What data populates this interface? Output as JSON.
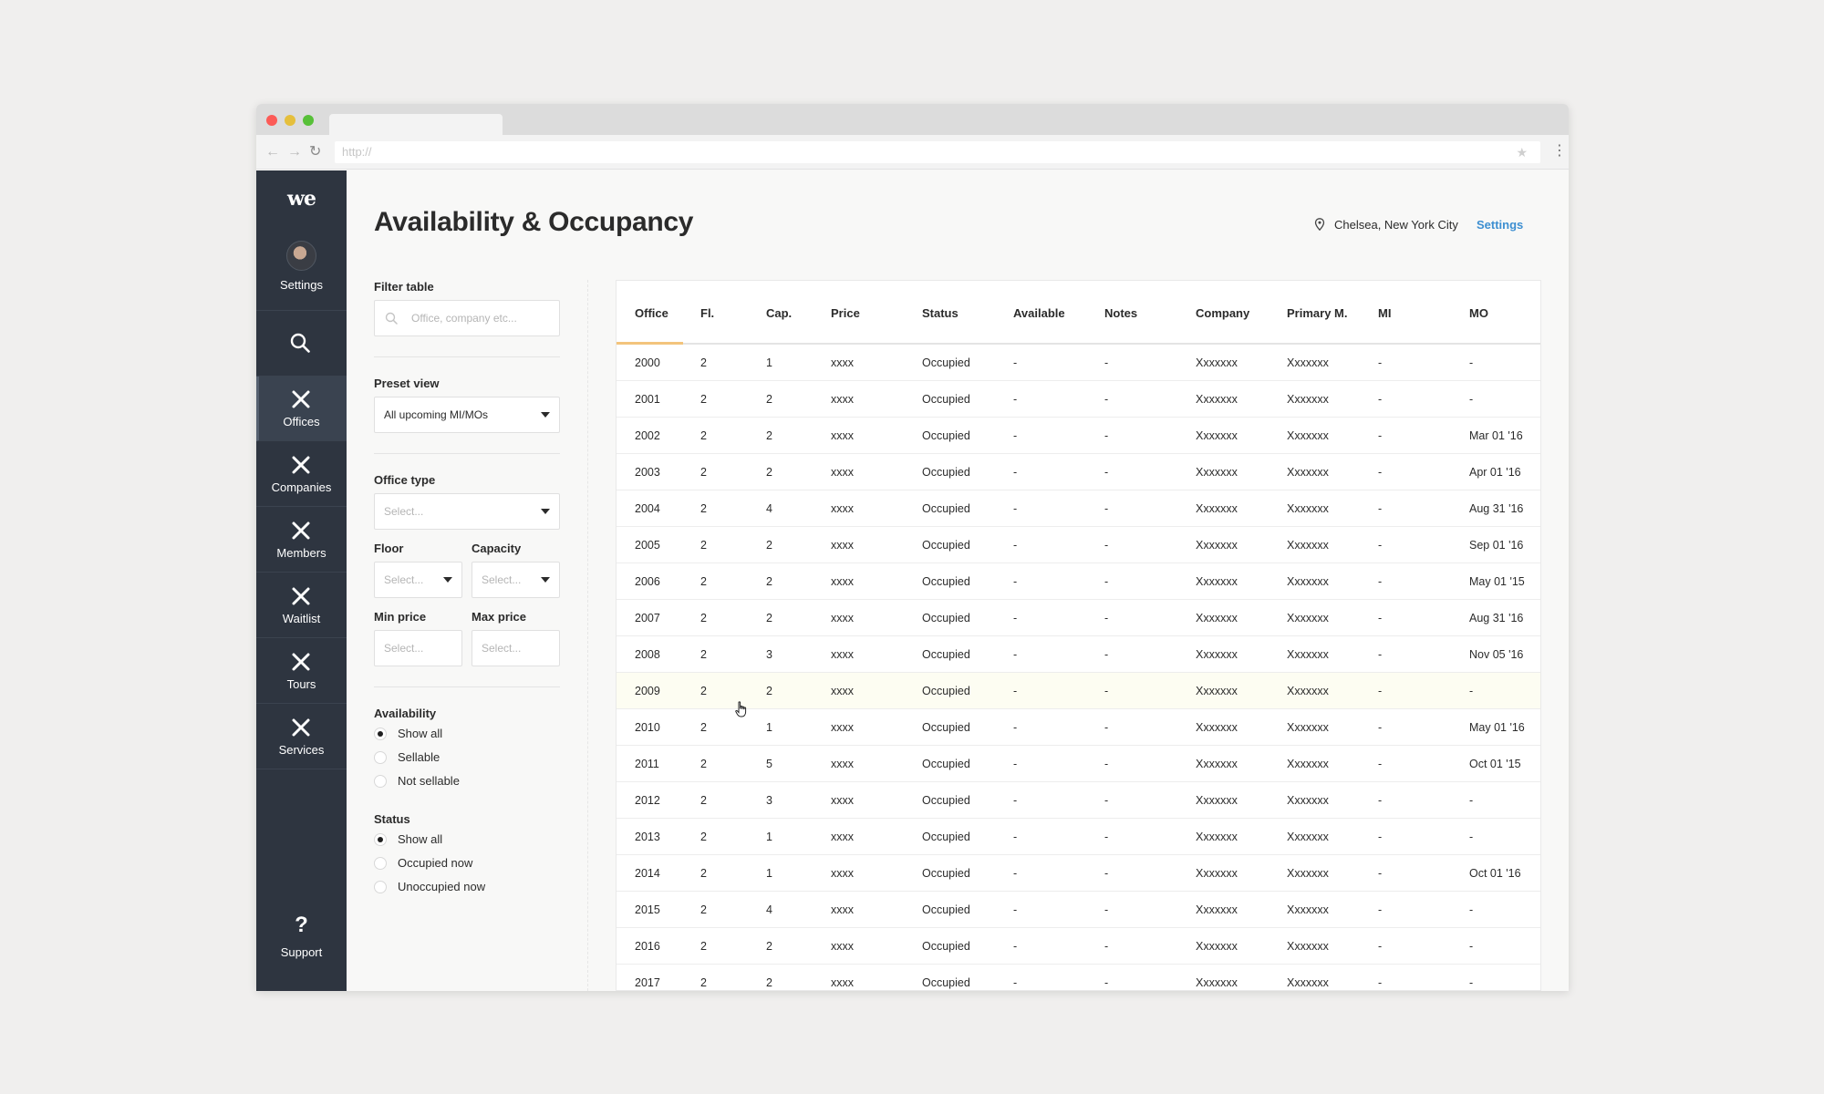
{
  "browser": {
    "url_placeholder": "http://",
    "back_glyph": "←",
    "forward_glyph": "→",
    "reload_glyph": "↻",
    "star_glyph": "★",
    "menu_glyph": "⋮"
  },
  "sidebar": {
    "logo": "we",
    "profile_label": "Settings",
    "items": [
      {
        "label": "Offices",
        "active": true
      },
      {
        "label": "Companies",
        "active": false
      },
      {
        "label": "Members",
        "active": false
      },
      {
        "label": "Waitlist",
        "active": false
      },
      {
        "label": "Tours",
        "active": false
      },
      {
        "label": "Services",
        "active": false
      }
    ],
    "support_glyph": "?",
    "support_label": "Support"
  },
  "header": {
    "title": "Availability & Occupancy",
    "location": "Chelsea, New York City",
    "settings_label": "Settings"
  },
  "filters": {
    "filter_table_label": "Filter table",
    "filter_table_placeholder": "Office, company etc...",
    "preset_view_label": "Preset view",
    "preset_view_value": "All upcoming MI/MOs",
    "office_type_label": "Office type",
    "office_type_placeholder": "Select...",
    "floor_label": "Floor",
    "floor_placeholder": "Select...",
    "capacity_label": "Capacity",
    "capacity_placeholder": "Select...",
    "min_price_label": "Min price",
    "min_price_placeholder": "Select...",
    "max_price_label": "Max price",
    "max_price_placeholder": "Select...",
    "availability_label": "Availability",
    "availability_options": [
      {
        "label": "Show all",
        "checked": true
      },
      {
        "label": "Sellable",
        "checked": false
      },
      {
        "label": "Not sellable",
        "checked": false
      }
    ],
    "status_label": "Status",
    "status_options": [
      {
        "label": "Show all",
        "checked": true
      },
      {
        "label": "Occupied now",
        "checked": false
      },
      {
        "label": "Unoccupied now",
        "checked": false
      }
    ]
  },
  "table": {
    "columns": [
      "Office",
      "Fl.",
      "Cap.",
      "Price",
      "Status",
      "Available",
      "Notes",
      "Company",
      "Primary M.",
      "MI",
      "MO"
    ],
    "rows": [
      [
        "2000",
        "2",
        "1",
        "xxxx",
        "Occupied",
        "-",
        "-",
        "Xxxxxxx",
        "Xxxxxxx",
        "-",
        "-"
      ],
      [
        "2001",
        "2",
        "2",
        "xxxx",
        "Occupied",
        "-",
        "-",
        "Xxxxxxx",
        "Xxxxxxx",
        "-",
        "-"
      ],
      [
        "2002",
        "2",
        "2",
        "xxxx",
        "Occupied",
        "-",
        "-",
        "Xxxxxxx",
        "Xxxxxxx",
        "-",
        "Mar 01 '16"
      ],
      [
        "2003",
        "2",
        "2",
        "xxxx",
        "Occupied",
        "-",
        "-",
        "Xxxxxxx",
        "Xxxxxxx",
        "-",
        "Apr 01 '16"
      ],
      [
        "2004",
        "2",
        "4",
        "xxxx",
        "Occupied",
        "-",
        "-",
        "Xxxxxxx",
        "Xxxxxxx",
        "-",
        "Aug 31 '16"
      ],
      [
        "2005",
        "2",
        "2",
        "xxxx",
        "Occupied",
        "-",
        "-",
        "Xxxxxxx",
        "Xxxxxxx",
        "-",
        "Sep 01 '16"
      ],
      [
        "2006",
        "2",
        "2",
        "xxxx",
        "Occupied",
        "-",
        "-",
        "Xxxxxxx",
        "Xxxxxxx",
        "-",
        "May 01 '15"
      ],
      [
        "2007",
        "2",
        "2",
        "xxxx",
        "Occupied",
        "-",
        "-",
        "Xxxxxxx",
        "Xxxxxxx",
        "-",
        "Aug 31 '16"
      ],
      [
        "2008",
        "2",
        "3",
        "xxxx",
        "Occupied",
        "-",
        "-",
        "Xxxxxxx",
        "Xxxxxxx",
        "-",
        "Nov 05 '16"
      ],
      [
        "2009",
        "2",
        "2",
        "xxxx",
        "Occupied",
        "-",
        "-",
        "Xxxxxxx",
        "Xxxxxxx",
        "-",
        "-"
      ],
      [
        "2010",
        "2",
        "1",
        "xxxx",
        "Occupied",
        "-",
        "-",
        "Xxxxxxx",
        "Xxxxxxx",
        "-",
        "May 01 '16"
      ],
      [
        "2011",
        "2",
        "5",
        "xxxx",
        "Occupied",
        "-",
        "-",
        "Xxxxxxx",
        "Xxxxxxx",
        "-",
        "Oct 01 '15"
      ],
      [
        "2012",
        "2",
        "3",
        "xxxx",
        "Occupied",
        "-",
        "-",
        "Xxxxxxx",
        "Xxxxxxx",
        "-",
        "-"
      ],
      [
        "2013",
        "2",
        "1",
        "xxxx",
        "Occupied",
        "-",
        "-",
        "Xxxxxxx",
        "Xxxxxxx",
        "-",
        "-"
      ],
      [
        "2014",
        "2",
        "1",
        "xxxx",
        "Occupied",
        "-",
        "-",
        "Xxxxxxx",
        "Xxxxxxx",
        "-",
        "Oct 01 '16"
      ],
      [
        "2015",
        "2",
        "4",
        "xxxx",
        "Occupied",
        "-",
        "-",
        "Xxxxxxx",
        "Xxxxxxx",
        "-",
        "-"
      ],
      [
        "2016",
        "2",
        "2",
        "xxxx",
        "Occupied",
        "-",
        "-",
        "Xxxxxxx",
        "Xxxxxxx",
        "-",
        "-"
      ],
      [
        "2017",
        "2",
        "2",
        "xxxx",
        "Occupied",
        "-",
        "-",
        "Xxxxxxx",
        "Xxxxxxx",
        "-",
        "-"
      ]
    ],
    "highlighted_row": 9
  },
  "colors": {
    "sidebar_bg": "#2e3540",
    "accent_link": "#3d8fd1",
    "active_column_underline": "#f3c47c",
    "row_highlight": "#fdfdf2"
  },
  "icons": {
    "sidebar_item": "close-x-icon",
    "search": "search-icon",
    "location": "map-pin-icon",
    "support": "help-question-icon",
    "cursor": "hand-pointer-icon"
  }
}
